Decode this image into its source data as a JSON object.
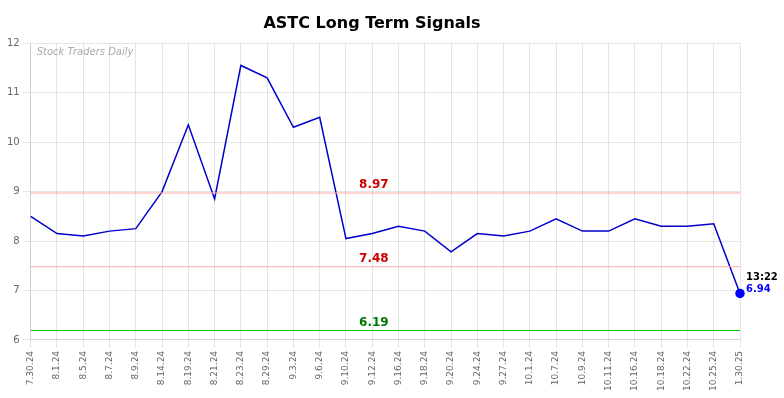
{
  "chart_data": {
    "type": "line",
    "title": "ASTC Long Term Signals",
    "categories": [
      "7.30.24",
      "8.1.24",
      "8.5.24",
      "8.7.24",
      "8.9.24",
      "8.14.24",
      "8.19.24",
      "8.21.24",
      "8.23.24",
      "8.29.24",
      "9.3.24",
      "9.6.24",
      "9.10.24",
      "9.12.24",
      "9.16.24",
      "9.18.24",
      "9.20.24",
      "9.24.24",
      "9.27.24",
      "10.1.24",
      "10.7.24",
      "10.9.24",
      "10.11.24",
      "10.16.24",
      "10.18.24",
      "10.22.24",
      "10.25.24",
      "1.30.25"
    ],
    "values": [
      8.5,
      8.15,
      8.1,
      8.2,
      8.25,
      9.0,
      10.35,
      8.85,
      11.55,
      11.3,
      10.3,
      10.5,
      8.05,
      8.15,
      8.3,
      8.2,
      7.78,
      8.15,
      8.1,
      8.2,
      8.45,
      8.2,
      8.2,
      8.45,
      8.3,
      8.3,
      8.35,
      6.94
    ],
    "color": "#0000cc",
    "hlines": [
      {
        "value": 8.97,
        "label": "8.97",
        "color": "#ffaaaa",
        "label_color": "#cc0000"
      },
      {
        "value": 7.48,
        "label": "7.48",
        "color": "#ffaaaa",
        "label_color": "#cc0000"
      },
      {
        "value": 6.19,
        "label": "6.19",
        "color": "#00cc00",
        "label_color": "#007700"
      }
    ],
    "annotations": [
      {
        "text": "13:22",
        "x": "1.30.25",
        "y": 6.94,
        "color": "#000000"
      },
      {
        "text": "6.94",
        "x": "1.30.25",
        "y": 6.94,
        "color": "#0000ff"
      },
      {
        "text": "Stock Traders Daily",
        "color": "#aaaaaa"
      }
    ],
    "ylim": [
      6.0,
      12.0
    ],
    "yticks": [
      6,
      7,
      8,
      9,
      10,
      11,
      12
    ],
    "grid": true
  }
}
